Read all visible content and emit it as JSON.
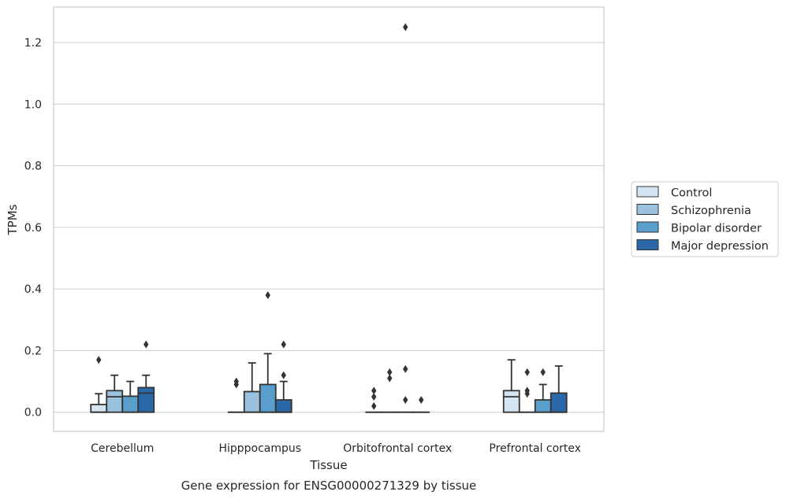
{
  "chart_data": {
    "type": "box",
    "xlabel": "Tissue",
    "ylabel": "TPMs",
    "caption": "Gene expression for ENSG00000271329 by tissue",
    "ylim": [
      -0.062,
      1.315
    ],
    "yticks": [
      "0.0",
      "0.2",
      "0.4",
      "0.6",
      "0.8",
      "1.0",
      "1.2"
    ],
    "ytick_values": [
      0.0,
      0.2,
      0.4,
      0.6,
      0.8,
      1.0,
      1.2
    ],
    "grid": "horizontal",
    "legend_position": "right",
    "categories": [
      "Cerebellum",
      "Hipppocampus",
      "Orbitofrontal cortex",
      "Prefrontal cortex"
    ],
    "series": [
      {
        "name": "Control",
        "color": "#d3e4f3",
        "boxes": [
          {
            "q1": 0.0,
            "median": 0.0,
            "q3": 0.025,
            "whisker_low": 0.0,
            "whisker_high": 0.06,
            "outliers": [
              0.17
            ]
          },
          {
            "q1": 0.0,
            "median": 0.0,
            "q3": 0.0,
            "whisker_low": 0.0,
            "whisker_high": 0.0,
            "outliers": [
              0.09,
              0.1
            ]
          },
          {
            "q1": 0.0,
            "median": 0.0,
            "q3": 0.0,
            "whisker_low": 0.0,
            "whisker_high": 0.0,
            "outliers": [
              0.02,
              0.05,
              0.07
            ]
          },
          {
            "q1": 0.0,
            "median": 0.05,
            "q3": 0.07,
            "whisker_low": 0.0,
            "whisker_high": 0.17,
            "outliers": []
          }
        ]
      },
      {
        "name": "Schizophrenia",
        "color": "#9ac1dd",
        "boxes": [
          {
            "q1": 0.0,
            "median": 0.05,
            "q3": 0.07,
            "whisker_low": 0.0,
            "whisker_high": 0.12,
            "outliers": []
          },
          {
            "q1": 0.0,
            "median": 0.0,
            "q3": 0.067,
            "whisker_low": 0.0,
            "whisker_high": 0.16,
            "outliers": []
          },
          {
            "q1": 0.0,
            "median": 0.0,
            "q3": 0.0,
            "whisker_low": 0.0,
            "whisker_high": 0.0,
            "outliers": [
              0.11,
              0.13
            ]
          },
          {
            "q1": 0.0,
            "median": 0.0,
            "q3": 0.0,
            "whisker_low": 0.0,
            "whisker_high": 0.0,
            "outliers": [
              0.06,
              0.07,
              0.13
            ]
          }
        ]
      },
      {
        "name": "Bipolar disorder",
        "color": "#5a9ecc",
        "boxes": [
          {
            "q1": 0.0,
            "median": 0.0,
            "q3": 0.052,
            "whisker_low": 0.0,
            "whisker_high": 0.1,
            "outliers": []
          },
          {
            "q1": 0.0,
            "median": 0.0,
            "q3": 0.09,
            "whisker_low": 0.0,
            "whisker_high": 0.19,
            "outliers": [
              0.38
            ]
          },
          {
            "q1": 0.0,
            "median": 0.0,
            "q3": 0.0,
            "whisker_low": 0.0,
            "whisker_high": 0.0,
            "outliers": [
              0.04,
              0.14,
              1.25
            ]
          },
          {
            "q1": 0.0,
            "median": 0.0,
            "q3": 0.04,
            "whisker_low": 0.0,
            "whisker_high": 0.09,
            "outliers": [
              0.13
            ]
          }
        ]
      },
      {
        "name": "Major depression",
        "color": "#2a68a9",
        "boxes": [
          {
            "q1": 0.0,
            "median": 0.062,
            "q3": 0.08,
            "whisker_low": 0.0,
            "whisker_high": 0.12,
            "outliers": [
              0.22
            ]
          },
          {
            "q1": 0.0,
            "median": 0.0,
            "q3": 0.04,
            "whisker_low": 0.0,
            "whisker_high": 0.1,
            "outliers": [
              0.12,
              0.22
            ]
          },
          {
            "q1": 0.0,
            "median": 0.0,
            "q3": 0.0,
            "whisker_low": 0.0,
            "whisker_high": 0.0,
            "outliers": [
              0.04
            ]
          },
          {
            "q1": 0.0,
            "median": 0.0,
            "q3": 0.062,
            "whisker_low": 0.0,
            "whisker_high": 0.15,
            "outliers": []
          }
        ]
      }
    ]
  }
}
